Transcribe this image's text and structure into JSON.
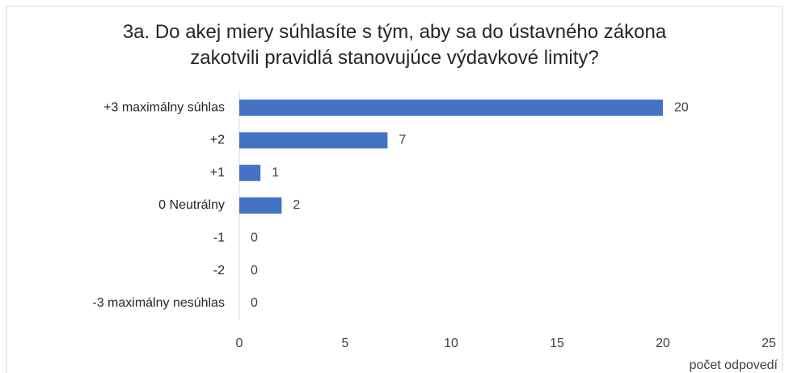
{
  "chart_data": {
    "type": "barh",
    "title": "3a. Do akej miery súhlasíte s tým, aby sa do ústavného zákona\nzakotvili pravidlá stanovujúce výdavkové limity?",
    "categories": [
      "+3 maximálny súhlas",
      "+2",
      "+1",
      "0 Neutrálny",
      "-1",
      "-2",
      "-3 maximálny nesúhlas"
    ],
    "values": [
      20,
      7,
      1,
      2,
      0,
      0,
      0
    ],
    "color": "#4472c4",
    "xlim": [
      0,
      25
    ],
    "xticks": [
      0,
      5,
      10,
      15,
      20,
      25
    ],
    "xlabel": "počet odpovedí"
  }
}
